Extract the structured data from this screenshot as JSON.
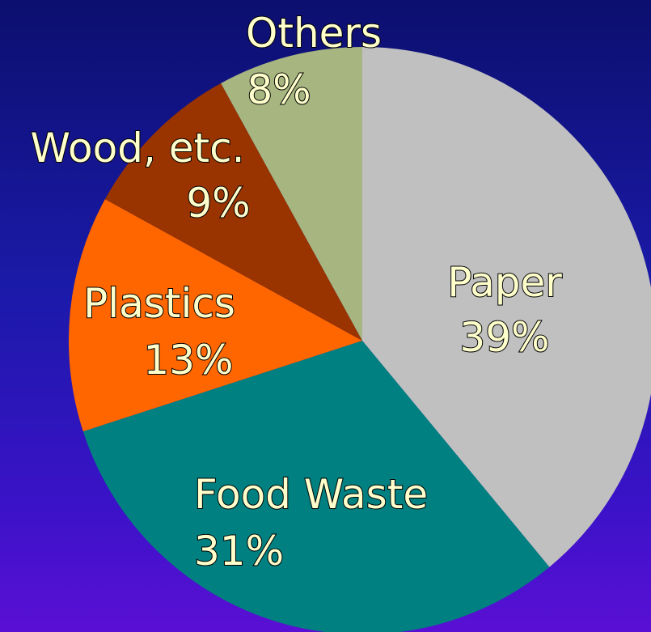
{
  "chart_data": {
    "type": "pie",
    "title": "",
    "slices": [
      {
        "category": "Paper",
        "percent_label": "39%",
        "value": 39,
        "color": "#c0c0c0"
      },
      {
        "category": "Food Waste",
        "percent_label": "31%",
        "value": 31,
        "color": "#008080"
      },
      {
        "category": "Plastics",
        "percent_label": "13%",
        "value": 13,
        "color": "#ff6600"
      },
      {
        "category": "Wood, etc.",
        "percent_label": "9%",
        "value": 9,
        "color": "#993300"
      },
      {
        "category": "Others",
        "percent_label": "8%",
        "value": 8,
        "color": "#a7b580"
      }
    ],
    "start_angle_deg": 0,
    "direction": "clockwise",
    "legend": "none",
    "label_color": "#ffffcc"
  }
}
